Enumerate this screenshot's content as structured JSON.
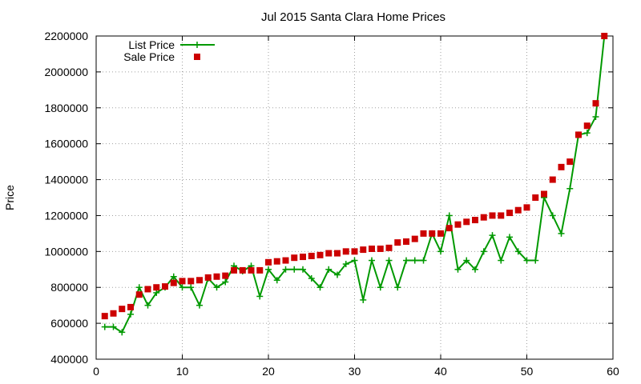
{
  "chart_data": {
    "type": "line",
    "title": "Jul 2015 Santa Clara Home Prices",
    "xlabel": "",
    "ylabel": "Price",
    "xlim": [
      0,
      60
    ],
    "ylim": [
      400000,
      2200000
    ],
    "xticks": [
      0,
      10,
      20,
      30,
      40,
      50,
      60
    ],
    "yticks": [
      400000,
      600000,
      800000,
      1000000,
      1200000,
      1400000,
      1600000,
      1800000,
      2000000,
      2200000
    ],
    "grid": true,
    "legend_position": "top-left",
    "x": [
      1,
      2,
      3,
      4,
      5,
      6,
      7,
      8,
      9,
      10,
      11,
      12,
      13,
      14,
      15,
      16,
      17,
      18,
      19,
      20,
      21,
      22,
      23,
      24,
      25,
      26,
      27,
      28,
      29,
      30,
      31,
      32,
      33,
      34,
      35,
      36,
      37,
      38,
      39,
      40,
      41,
      42,
      43,
      44,
      45,
      46,
      47,
      48,
      49,
      50,
      51,
      52,
      53,
      54,
      55,
      56,
      57,
      58,
      59
    ],
    "series": [
      {
        "name": "List Price",
        "style": "linespoints",
        "marker": "plus",
        "color": "#009900",
        "values": [
          580000,
          580000,
          550000,
          650000,
          800000,
          700000,
          770000,
          800000,
          860000,
          800000,
          800000,
          700000,
          850000,
          800000,
          830000,
          920000,
          890000,
          920000,
          750000,
          900000,
          840000,
          900000,
          900000,
          900000,
          850000,
          800000,
          900000,
          870000,
          930000,
          950000,
          730000,
          950000,
          800000,
          950000,
          800000,
          950000,
          950000,
          950000,
          1100000,
          1000000,
          1200000,
          900000,
          950000,
          900000,
          1000000,
          1090000,
          950000,
          1080000,
          1000000,
          950000,
          950000,
          1300000,
          1200000,
          1100000,
          1350000,
          1650000,
          1660000,
          1750000,
          2200000
        ]
      },
      {
        "name": "Sale Price",
        "style": "points",
        "marker": "square",
        "color": "#cc0000",
        "values": [
          640000,
          655000,
          680000,
          690000,
          760000,
          790000,
          800000,
          805000,
          825000,
          835000,
          835000,
          840000,
          855000,
          860000,
          865000,
          895000,
          895000,
          895000,
          895000,
          940000,
          945000,
          950000,
          965000,
          970000,
          975000,
          980000,
          990000,
          990000,
          1000000,
          1000000,
          1010000,
          1015000,
          1015000,
          1020000,
          1050000,
          1055000,
          1070000,
          1100000,
          1100000,
          1100000,
          1130000,
          1150000,
          1165000,
          1175000,
          1190000,
          1200000,
          1200000,
          1215000,
          1230000,
          1245000,
          1300000,
          1320000,
          1400000,
          1470000,
          1500000,
          1650000,
          1700000,
          1825000,
          2200000
        ]
      }
    ]
  }
}
